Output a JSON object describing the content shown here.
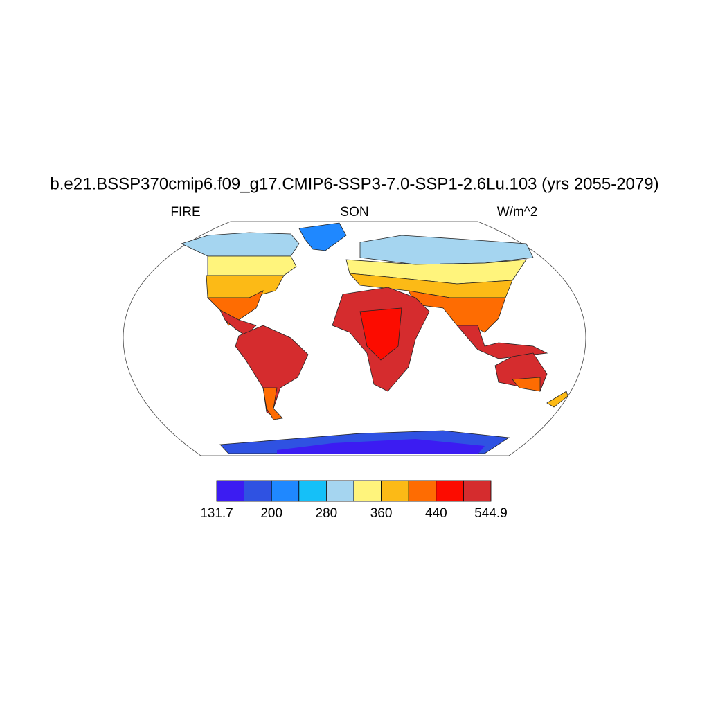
{
  "header": {
    "title": "b.e21.BSSP370cmip6.f09_g17.CMIP6-SSP3-7.0-SSP1-2.6Lu.103 (yrs 2055-2079)",
    "left": "FIRE",
    "center": "SON",
    "right": "W/m^2"
  },
  "colorbar": {
    "colors": [
      "#3c1cf2",
      "#2f52e2",
      "#1f88ff",
      "#15c0f8",
      "#a5d5f0",
      "#fff47c",
      "#fcba16",
      "#fe6c02",
      "#fc0c00",
      "#d52c2e"
    ],
    "ticks": [
      131.7,
      200,
      280,
      360,
      440,
      544.9
    ]
  }
}
